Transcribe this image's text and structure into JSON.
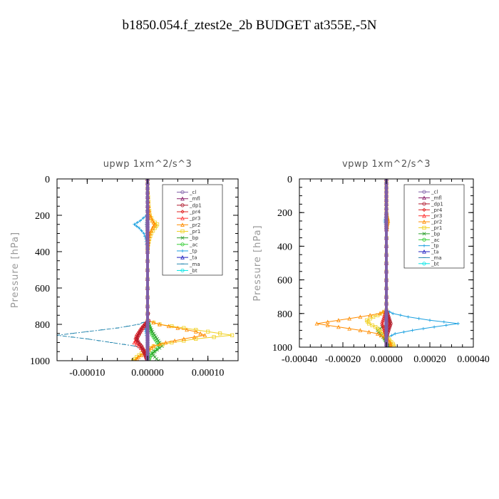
{
  "figure_title": "b1850.054.f_ztest2e_2b  BUDGET at355E,-5N",
  "colors": {
    "cl": "#7f5fa8",
    "mfl": "#8a1f6a",
    "dp1": "#b0192c",
    "pr4": "#e02020",
    "pr3": "#ff3030",
    "pr2": "#ff8c00",
    "pr1": "#f0d020",
    "bp": "#2e9e2e",
    "ac": "#33cc33",
    "tp": "#1aa0e0",
    "ta": "#2020c0",
    "ma": "#2888b0",
    "bt": "#00e5e5"
  },
  "chart_data": [
    {
      "type": "line",
      "title": "upwp   1xm^2/s^3",
      "ylabel": "Pressure [hPa]",
      "xlim": [
        -0.00015,
        0.00015
      ],
      "ylim": [
        1000,
        0
      ],
      "y_inverted": true,
      "xticks": [
        -0.0001,
        0.0,
        0.0001
      ],
      "xtick_labels": [
        "-0.00010",
        "0.00000",
        "0.00010"
      ],
      "yticks": [
        0,
        200,
        400,
        600,
        800,
        1000
      ],
      "ytick_labels": [
        "0",
        "200",
        "400",
        "600",
        "800",
        "1000"
      ],
      "grid": false,
      "legend_position": "top-right",
      "legend": [
        "_cl",
        "_mfl",
        "_dp1",
        "_pr4",
        "_pr3",
        "_pr2",
        "_pr1",
        "_bp",
        "_ac",
        "_tp",
        "_ta",
        "_ma",
        "_bt"
      ],
      "y": [
        0,
        50,
        100,
        150,
        200,
        230,
        250,
        270,
        300,
        330,
        360,
        400,
        500,
        600,
        700,
        780,
        800,
        820,
        840,
        860,
        880,
        900,
        920,
        940,
        960,
        980,
        1000
      ],
      "series": [
        {
          "key": "cl",
          "name": "_cl",
          "x": [
            0,
            0,
            0,
            0,
            0,
            0,
            0,
            0,
            0,
            0,
            0,
            0,
            0,
            0,
            0,
            0,
            0,
            0,
            0,
            0,
            0,
            0,
            0,
            0,
            0,
            0,
            0
          ]
        },
        {
          "key": "mfl",
          "name": "_mfl",
          "x": [
            0,
            0,
            0,
            0,
            0,
            0,
            0,
            0,
            0,
            0,
            0,
            0,
            0,
            0,
            0,
            0,
            0,
            0,
            0,
            0,
            0,
            0,
            0,
            0,
            0,
            0,
            0
          ]
        },
        {
          "key": "dp1",
          "name": "_dp1",
          "x": [
            0,
            0,
            0,
            0,
            0,
            0,
            0,
            0,
            0,
            0,
            0,
            0,
            0,
            0,
            0,
            2e-06,
            -4e-06,
            -8e-06,
            -1.2e-05,
            -1.5e-05,
            -1.8e-05,
            -1.5e-05,
            -1e-05,
            -8e-06,
            -5e-06,
            -3e-06,
            0
          ]
        },
        {
          "key": "pr4",
          "name": "_pr4",
          "x": [
            0,
            0,
            0,
            0,
            0,
            0,
            0,
            0,
            0,
            0,
            0,
            0,
            0,
            0,
            0,
            0,
            -5e-06,
            -1e-05,
            -1.4e-05,
            -1.8e-05,
            -2e-05,
            -1.6e-05,
            -1e-05,
            -6e-06,
            -4e-06,
            -2e-06,
            0
          ]
        },
        {
          "key": "pr3",
          "name": "_pr3",
          "x": [
            0,
            0,
            0,
            0,
            0,
            0,
            0,
            0,
            0,
            0,
            0,
            0,
            0,
            0,
            0,
            0,
            -4e-06,
            -8e-06,
            -1.2e-05,
            -1.6e-05,
            -1.8e-05,
            -2.2e-05,
            -1.4e-05,
            -8e-06,
            -4e-06,
            -2e-06,
            0
          ]
        },
        {
          "key": "pr2",
          "name": "_pr2",
          "x": [
            0,
            0,
            1e-06,
            2e-06,
            4e-06,
            8e-06,
            1.2e-05,
            8e-06,
            4e-06,
            2e-06,
            1e-06,
            0,
            0,
            0,
            0,
            0,
            2e-05,
            5e-05,
            8e-05,
            9.5e-05,
            6e-05,
            3e-05,
            1e-05,
            2e-06,
            -6e-06,
            -1.5e-05,
            -2e-05
          ]
        },
        {
          "key": "pr1",
          "name": "_pr1",
          "x": [
            0,
            0,
            1e-06,
            2e-06,
            4e-06,
            8e-06,
            1.6e-05,
            1.2e-05,
            6e-06,
            3e-06,
            1e-06,
            0,
            0,
            0,
            0,
            0,
            2e-05,
            6e-05,
            0.0001,
            0.00014,
            8e-05,
            4e-05,
            1e-05,
            2e-06,
            -1e-05,
            -1.8e-05,
            -2.4e-05
          ]
        },
        {
          "key": "bp",
          "name": "_bp",
          "x": [
            0,
            0,
            0,
            0,
            0,
            0,
            0,
            0,
            0,
            0,
            0,
            0,
            0,
            0,
            0,
            0,
            2e-06,
            5e-06,
            8e-06,
            1.2e-05,
            1.6e-05,
            2e-05,
            2.4e-05,
            1.6e-05,
            8e-06,
            1.2e-05,
            1.8e-05
          ]
        },
        {
          "key": "ac",
          "name": "_ac",
          "x": [
            0,
            0,
            0,
            0,
            0,
            0,
            0,
            0,
            0,
            0,
            0,
            0,
            0,
            0,
            0,
            0,
            2e-06,
            4e-06,
            6e-06,
            8e-06,
            1.2e-05,
            1.6e-05,
            2e-05,
            1.4e-05,
            6e-06,
            4e-06,
            2e-06
          ]
        },
        {
          "key": "tp",
          "name": "_tp",
          "x": [
            0,
            0,
            0,
            0,
            -2e-06,
            -1.2e-05,
            -2.2e-05,
            -1.4e-05,
            -6e-06,
            -3e-06,
            -2e-06,
            0,
            0,
            0,
            0,
            0,
            -2e-06,
            -4e-06,
            -3e-06,
            -2e-06,
            0,
            0,
            0,
            0,
            0,
            0,
            0
          ]
        },
        {
          "key": "ta",
          "name": "_ta",
          "x": [
            0,
            0,
            0,
            0,
            0,
            0,
            0,
            0,
            0,
            0,
            0,
            0,
            0,
            0,
            0,
            0,
            0,
            0,
            0,
            0,
            0,
            0,
            0,
            0,
            0,
            0,
            0
          ]
        },
        {
          "key": "ma",
          "name": "_ma",
          "x": [
            0,
            0,
            0,
            0,
            0,
            -1e-06,
            -2e-06,
            -1e-06,
            0,
            0,
            0,
            0,
            0,
            0,
            0,
            0,
            -1.5e-05,
            -5e-05,
            -0.0001,
            -0.00015,
            -0.0001,
            -6e-05,
            -2e-05,
            -5e-06,
            0,
            0,
            0
          ]
        },
        {
          "key": "bt",
          "name": "_bt",
          "x": [
            0,
            0,
            0,
            0,
            0,
            0,
            0,
            0,
            0,
            0,
            0,
            0,
            0,
            0,
            0,
            0,
            0,
            0,
            0,
            0,
            0,
            0,
            0,
            0,
            0,
            0,
            0
          ]
        }
      ]
    },
    {
      "type": "line",
      "title": "vpwp   1xm^2/s^3",
      "ylabel": "Pressure [hPa]",
      "xlim": [
        -0.0004,
        0.0004
      ],
      "ylim": [
        1000,
        0
      ],
      "y_inverted": true,
      "xticks": [
        -0.0004,
        -0.0002,
        0.0,
        0.0002,
        0.0004
      ],
      "xtick_labels": [
        "-0.00040",
        "-0.00020",
        "0.00000",
        "0.00020",
        "0.00040"
      ],
      "yticks": [
        0,
        200,
        400,
        600,
        800,
        1000
      ],
      "ytick_labels": [
        "0",
        "200",
        "400",
        "600",
        "800",
        "1000"
      ],
      "grid": false,
      "legend_position": "top-right",
      "legend": [
        "_cl",
        "_mfl",
        "_dp1",
        "_pr4",
        "_pr3",
        "_pr2",
        "_pr1",
        "_bp",
        "_ac",
        "_tp",
        "_ta",
        "_ma",
        "_bt"
      ],
      "y": [
        0,
        50,
        100,
        150,
        200,
        230,
        250,
        270,
        300,
        400,
        500,
        600,
        700,
        780,
        800,
        820,
        840,
        860,
        880,
        900,
        920,
        940,
        960,
        980,
        1000
      ],
      "series": [
        {
          "key": "cl",
          "name": "_cl",
          "x": [
            0,
            0,
            0,
            0,
            0,
            0,
            0,
            0,
            0,
            0,
            0,
            0,
            0,
            0,
            0,
            0,
            0,
            0,
            0,
            0,
            0,
            0,
            0,
            0,
            0
          ]
        },
        {
          "key": "mfl",
          "name": "_mfl",
          "x": [
            0,
            0,
            0,
            0,
            0,
            0,
            0,
            0,
            0,
            0,
            0,
            0,
            0,
            0,
            0,
            0,
            0,
            0,
            0,
            0,
            0,
            0,
            0,
            0,
            0
          ]
        },
        {
          "key": "dp1",
          "name": "_dp1",
          "x": [
            0,
            0,
            0,
            0,
            0,
            0,
            0,
            0,
            0,
            0,
            0,
            0,
            0,
            0,
            5e-06,
            1e-05,
            1.5e-05,
            2e-05,
            1.5e-05,
            1e-05,
            5e-06,
            0,
            0,
            0,
            0
          ]
        },
        {
          "key": "pr4",
          "name": "_pr4",
          "x": [
            0,
            0,
            0,
            0,
            0,
            0,
            0,
            0,
            0,
            0,
            0,
            0,
            0,
            0,
            -5e-06,
            -1e-05,
            -1.5e-05,
            -2e-05,
            -1.5e-05,
            -1e-05,
            -5e-06,
            0,
            0,
            0,
            0
          ]
        },
        {
          "key": "pr3",
          "name": "_pr3",
          "x": [
            0,
            0,
            0,
            0,
            0,
            0,
            0,
            0,
            0,
            0,
            0,
            0,
            0,
            0,
            4e-06,
            8e-06,
            1.2e-05,
            1.6e-05,
            1e-05,
            6e-06,
            3e-06,
            0,
            0,
            0,
            0
          ]
        },
        {
          "key": "pr2",
          "name": "_pr2",
          "x": [
            0,
            0,
            0,
            0,
            0,
            4e-06,
            8e-06,
            4e-06,
            2e-06,
            0,
            0,
            0,
            0,
            0,
            -3e-05,
            -0.00012,
            -0.00022,
            -0.00032,
            -0.00022,
            -0.00012,
            -4e-05,
            -1e-05,
            1e-05,
            2e-05,
            2e-05
          ]
        },
        {
          "key": "pr1",
          "name": "_pr1",
          "x": [
            0,
            0,
            0,
            0,
            0,
            3e-06,
            6e-06,
            3e-06,
            1e-06,
            0,
            0,
            0,
            0,
            0,
            -2e-05,
            -6e-05,
            -9e-05,
            -8e-05,
            -5e-05,
            -3e-05,
            -1.5e-05,
            5e-06,
            1.5e-05,
            3e-05,
            3.5e-05
          ]
        },
        {
          "key": "bp",
          "name": "_bp",
          "x": [
            0,
            0,
            0,
            0,
            0,
            0,
            0,
            0,
            0,
            0,
            0,
            0,
            0,
            0,
            4e-06,
            8e-06,
            1.2e-05,
            1.6e-05,
            -2e-05,
            -4e-05,
            -3e-05,
            -1.5e-05,
            -5e-06,
            1e-05,
            1.5e-05
          ]
        },
        {
          "key": "ac",
          "name": "_ac",
          "x": [
            0,
            0,
            0,
            0,
            0,
            0,
            0,
            0,
            0,
            0,
            0,
            0,
            0,
            0,
            2e-06,
            4e-06,
            6e-06,
            8e-06,
            4e-06,
            2e-06,
            -4e-06,
            -8e-06,
            -4e-06,
            2e-06,
            4e-06
          ]
        },
        {
          "key": "tp",
          "name": "_tp",
          "x": [
            0,
            0,
            0,
            0,
            0,
            -4e-06,
            -8e-06,
            -4e-06,
            0,
            0,
            0,
            0,
            0,
            0,
            3e-05,
            0.0001,
            0.0002,
            0.00033,
            0.00022,
            0.00012,
            4e-05,
            1e-05,
            0,
            0,
            0
          ]
        },
        {
          "key": "ta",
          "name": "_ta",
          "x": [
            0,
            0,
            0,
            0,
            0,
            0,
            0,
            0,
            0,
            0,
            0,
            0,
            0,
            0,
            0,
            0,
            0,
            0,
            0,
            0,
            0,
            0,
            0,
            0,
            0
          ]
        },
        {
          "key": "ma",
          "name": "_ma",
          "x": [
            0,
            0,
            0,
            0,
            0,
            0,
            0,
            0,
            0,
            0,
            0,
            0,
            0,
            0,
            2e-06,
            4e-06,
            6e-06,
            4e-06,
            2e-06,
            0,
            0,
            0,
            0,
            0,
            0
          ]
        },
        {
          "key": "bt",
          "name": "_bt",
          "x": [
            0,
            0,
            0,
            0,
            0,
            0,
            0,
            0,
            0,
            0,
            0,
            0,
            0,
            0,
            0,
            0,
            0,
            0,
            0,
            0,
            0,
            0,
            0,
            0,
            0
          ]
        }
      ]
    }
  ]
}
